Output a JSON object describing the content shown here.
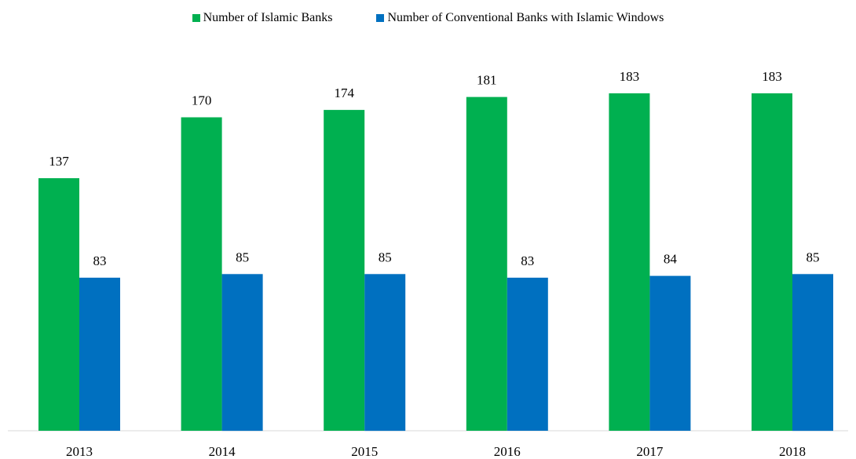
{
  "chart_data": {
    "type": "bar",
    "categories": [
      "2013",
      "2014",
      "2015",
      "2016",
      "2017",
      "2018"
    ],
    "series": [
      {
        "name": "Number of Islamic Banks",
        "color": "#00b050",
        "values": [
          137,
          170,
          174,
          181,
          183,
          183
        ]
      },
      {
        "name": "Number of Conventional Banks with Islamic Windows",
        "color": "#0070c0",
        "values": [
          83,
          85,
          85,
          83,
          84,
          85
        ]
      }
    ],
    "ylim": [
      0,
      200
    ],
    "grid": false,
    "legend_position": "top-center",
    "data_labels": true
  }
}
